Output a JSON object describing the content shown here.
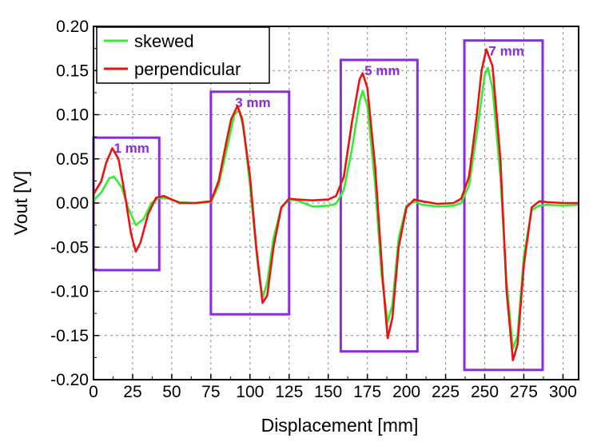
{
  "chart_data": {
    "type": "line",
    "xlabel": "Displacement [mm]",
    "ylabel": "Vout [V]",
    "xlim": [
      0,
      310
    ],
    "ylim": [
      -0.2,
      0.2
    ],
    "xticks": [
      0,
      25,
      50,
      75,
      100,
      125,
      150,
      175,
      200,
      225,
      250,
      275,
      300
    ],
    "xtick_labels": [
      "0",
      "25",
      "50",
      "75",
      "100",
      "125",
      "150",
      "175",
      "200",
      "225",
      "250",
      "275",
      "300"
    ],
    "yticks": [
      0.2,
      0.15,
      0.1,
      0.05,
      0.0,
      -0.05,
      -0.1,
      -0.15,
      -0.2
    ],
    "ytick_labels": [
      "0.20",
      "0.15",
      "0.10",
      "0.05",
      "0.00",
      "-0.05",
      "-0.10",
      "-0.15",
      "-0.20"
    ],
    "grid": true,
    "legend_position": "top-left",
    "series": [
      {
        "name": "skewed",
        "color": "#33ee33",
        "x": [
          0,
          5,
          10,
          13,
          18,
          22,
          27,
          32,
          37,
          42,
          48,
          55,
          65,
          75,
          80,
          85,
          90,
          93,
          96,
          100,
          105,
          108,
          111,
          115,
          120,
          125,
          130,
          140,
          150,
          155,
          160,
          165,
          170,
          172,
          175,
          180,
          184,
          188,
          191,
          195,
          200,
          205,
          210,
          220,
          230,
          235,
          240,
          245,
          250,
          252,
          255,
          260,
          264,
          268,
          271,
          275,
          280,
          285,
          290,
          300,
          310
        ],
        "y": [
          0.003,
          0.012,
          0.028,
          0.03,
          0.018,
          -0.005,
          -0.025,
          -0.018,
          0.0,
          0.006,
          0.005,
          0.001,
          0.0,
          0.001,
          0.02,
          0.06,
          0.1,
          0.105,
          0.085,
          0.02,
          -0.07,
          -0.108,
          -0.09,
          -0.04,
          -0.005,
          0.004,
          0.003,
          -0.004,
          -0.003,
          -0.001,
          0.015,
          0.06,
          0.115,
          0.127,
          0.11,
          0.02,
          -0.08,
          -0.135,
          -0.115,
          -0.04,
          -0.003,
          0.002,
          -0.002,
          -0.004,
          -0.003,
          0.0,
          0.02,
          0.08,
          0.145,
          0.153,
          0.13,
          0.03,
          -0.09,
          -0.165,
          -0.15,
          -0.06,
          -0.008,
          -0.003,
          -0.002,
          -0.003,
          -0.002
        ]
      },
      {
        "name": "perpendicular",
        "color": "#ee1111",
        "x": [
          0,
          5,
          8,
          12,
          16,
          20,
          24,
          27,
          30,
          35,
          40,
          45,
          50,
          55,
          65,
          75,
          80,
          85,
          88,
          92,
          95,
          100,
          104,
          108,
          111,
          115,
          120,
          125,
          130,
          140,
          150,
          155,
          160,
          165,
          170,
          172,
          175,
          180,
          185,
          188,
          191,
          195,
          200,
          205,
          210,
          220,
          230,
          235,
          240,
          245,
          248,
          251,
          255,
          260,
          264,
          268,
          271,
          275,
          280,
          285,
          290,
          300,
          310
        ],
        "y": [
          0.01,
          0.025,
          0.045,
          0.062,
          0.05,
          0.01,
          -0.035,
          -0.055,
          -0.045,
          -0.012,
          0.006,
          0.008,
          0.004,
          0.0,
          0.0,
          0.002,
          0.025,
          0.07,
          0.095,
          0.11,
          0.095,
          0.03,
          -0.05,
          -0.113,
          -0.105,
          -0.05,
          -0.005,
          0.005,
          0.004,
          0.003,
          0.004,
          0.008,
          0.03,
          0.09,
          0.14,
          0.147,
          0.13,
          0.04,
          -0.09,
          -0.153,
          -0.13,
          -0.05,
          -0.005,
          0.004,
          0.002,
          -0.001,
          0.0,
          0.005,
          0.03,
          0.1,
          0.15,
          0.174,
          0.155,
          0.05,
          -0.1,
          -0.178,
          -0.16,
          -0.07,
          -0.005,
          0.002,
          0.001,
          0.0,
          0.0
        ]
      }
    ],
    "annotations": [
      {
        "label": "1 mm",
        "x0": 0,
        "x1": 42,
        "y0": -0.076,
        "y1": 0.074,
        "color": "#8a2be2"
      },
      {
        "label": "3 mm",
        "x0": 75,
        "x1": 125,
        "y0": -0.126,
        "y1": 0.126,
        "color": "#8a2be2"
      },
      {
        "label": "5 mm",
        "x0": 158,
        "x1": 207,
        "y0": -0.168,
        "y1": 0.162,
        "color": "#8a2be2"
      },
      {
        "label": "7 mm",
        "x0": 237,
        "x1": 287,
        "y0": -0.189,
        "y1": 0.184,
        "color": "#8a2be2"
      }
    ]
  }
}
